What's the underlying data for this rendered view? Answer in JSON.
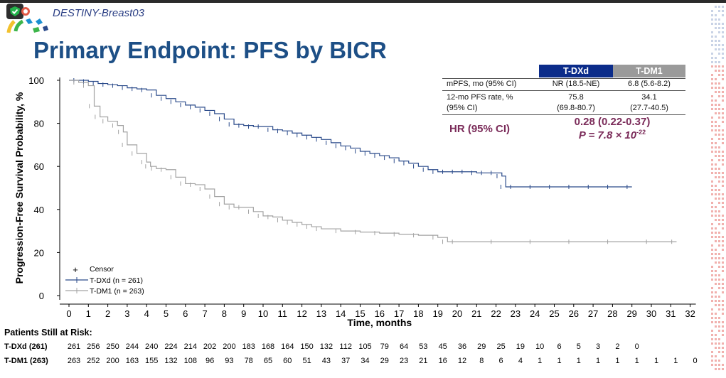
{
  "header": {
    "trial_name": "DESTINY-Breast03",
    "title": "Primary Endpoint: PFS by BICR"
  },
  "table": {
    "col_headers": [
      "T-DXd",
      "T-DM1"
    ],
    "rows": [
      {
        "label": "mPFS, mo (95% CI)",
        "tdxd": "NR (18.5-NE)",
        "tdm1": "6.8 (5.6-8.2)"
      },
      {
        "label_line1": "12-mo PFS rate, %",
        "label_line2": "(95% CI)",
        "tdxd_line1": "75.8",
        "tdxd_line2": "(69.8-80.7)",
        "tdm1_line1": "34.1",
        "tdm1_line2": "(27.7-40.5)"
      }
    ],
    "hr_label": "HR (95% CI)",
    "hr_value": "0.28 (0.22-0.37)",
    "p_value": "P = 7.8 × 10",
    "p_exponent": "-22"
  },
  "legend": {
    "censor": "Censor",
    "tdxd": "T-DXd (n = 261)",
    "tdm1": "T-DM1 (n = 263)"
  },
  "at_risk": {
    "title": "Patients Still at Risk:",
    "tdxd_label": "T-DXd (261)",
    "tdm1_label": "T-DM1 (263)",
    "tdxd": [
      "261",
      "256",
      "250",
      "244",
      "240",
      "224",
      "214",
      "202",
      "200",
      "183",
      "168",
      "164",
      "150",
      "132",
      "112",
      "105",
      "79",
      "64",
      "53",
      "45",
      "36",
      "29",
      "25",
      "19",
      "10",
      "6",
      "5",
      "3",
      "2",
      "0"
    ],
    "tdm1": [
      "263",
      "252",
      "200",
      "163",
      "155",
      "132",
      "108",
      "96",
      "93",
      "78",
      "65",
      "60",
      "51",
      "43",
      "37",
      "34",
      "29",
      "23",
      "21",
      "16",
      "12",
      "8",
      "6",
      "4",
      "1",
      "1",
      "1",
      "1",
      "1",
      "1",
      "1",
      "1",
      "0"
    ]
  },
  "colors": {
    "tdxd": "#2a4a8a",
    "tdm1": "#a3a3a3",
    "hr": "#7b2c5a",
    "title": "#1d4f86",
    "header_tdxd": "#0b2c8a",
    "header_tdm1": "#9a9a9a"
  },
  "chart_data": {
    "type": "line",
    "title": "Primary Endpoint: PFS by BICR",
    "xlabel": "Time,  months",
    "ylabel": "Progression-Free Survival Probability, %",
    "xlim": [
      0,
      32
    ],
    "ylim": [
      0,
      100
    ],
    "xticks": [
      0,
      1,
      2,
      3,
      4,
      5,
      6,
      7,
      8,
      9,
      10,
      11,
      12,
      13,
      14,
      15,
      16,
      17,
      18,
      19,
      20,
      21,
      22,
      23,
      24,
      25,
      26,
      27,
      28,
      29,
      30,
      31,
      32
    ],
    "yticks": [
      0,
      20,
      40,
      60,
      80,
      100
    ],
    "series": [
      {
        "name": "T-DXd (n = 261)",
        "x": [
          0,
          0.5,
          1,
          1.5,
          2,
          2.5,
          3,
          3.5,
          4,
          4.5,
          5,
          5.5,
          6,
          6.5,
          7,
          7.5,
          8,
          8.5,
          9,
          9.5,
          10,
          10.5,
          11,
          11.5,
          12,
          12.5,
          13,
          13.5,
          14,
          14.5,
          15,
          15.5,
          16,
          16.5,
          17,
          17.5,
          18,
          18.5,
          19,
          19.5,
          20,
          20.5,
          21,
          21.5,
          22,
          22.3,
          22.5,
          23,
          24,
          25,
          26,
          27,
          28,
          29
        ],
        "y": [
          100,
          100,
          99.5,
          98.5,
          98,
          97.5,
          96.5,
          96,
          95.5,
          93,
          91.5,
          90,
          88.5,
          87.5,
          86,
          84.5,
          82,
          79.5,
          79,
          78.5,
          78.5,
          77,
          76.5,
          75.5,
          74.5,
          73.5,
          72.5,
          71,
          69.5,
          68.5,
          67,
          66,
          65,
          64,
          62.5,
          61.5,
          60,
          58.5,
          57.5,
          57.5,
          57.5,
          57.5,
          57,
          57,
          57,
          55.5,
          50.5,
          50.5,
          50.5,
          50.5,
          50.5,
          50.5,
          50.5,
          50.5
        ]
      },
      {
        "name": "T-DM1 (n = 263)",
        "x": [
          0,
          0.5,
          1,
          1.3,
          1.6,
          2,
          2.5,
          2.8,
          3,
          3.5,
          4,
          4.2,
          4.5,
          5,
          5.5,
          6,
          6.5,
          7,
          7.5,
          8,
          8.5,
          9,
          9.5,
          10,
          10.5,
          11,
          11.5,
          12,
          12.5,
          13,
          14,
          15,
          16,
          17,
          18,
          19,
          19.5,
          20,
          22,
          24,
          26,
          28,
          30,
          31.3
        ],
        "y": [
          100,
          99,
          97.5,
          88,
          83,
          81,
          79,
          76,
          70,
          66,
          62,
          60,
          59,
          58.5,
          55,
          52,
          51.5,
          49.5,
          46,
          42.5,
          41,
          41,
          39,
          37,
          36.5,
          35,
          34,
          33,
          32,
          31,
          30,
          29.5,
          29,
          28.5,
          28,
          27,
          25,
          25,
          25,
          25,
          25,
          25,
          25,
          25
        ]
      }
    ]
  }
}
